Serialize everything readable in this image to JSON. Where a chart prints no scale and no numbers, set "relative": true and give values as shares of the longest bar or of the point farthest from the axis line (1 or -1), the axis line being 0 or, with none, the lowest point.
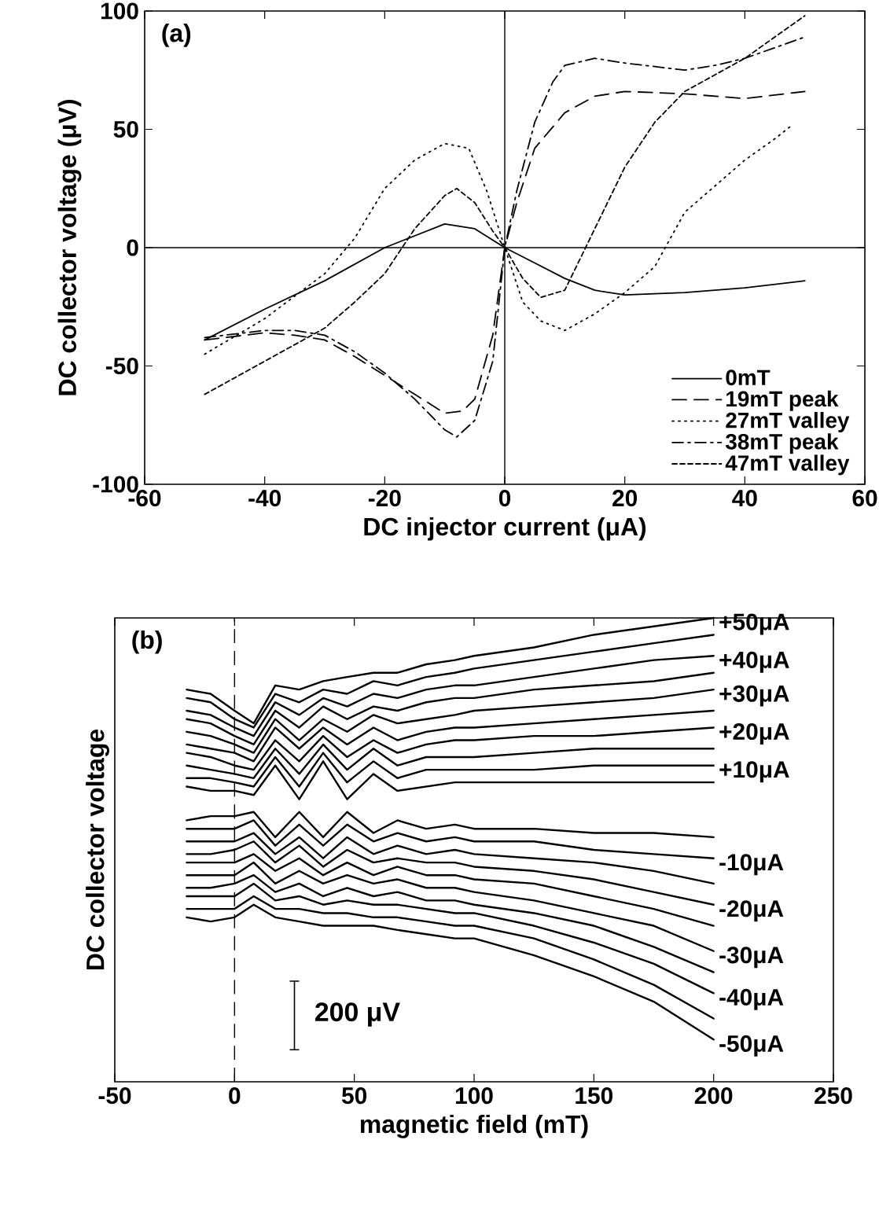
{
  "chart_data": [
    {
      "type": "line",
      "title": "(a)",
      "xlabel": "DC injector current (μA)",
      "ylabel": "DC collector voltage (μV)",
      "xlim": [
        -60,
        60
      ],
      "xticks": [
        -60,
        -40,
        -20,
        0,
        20,
        40,
        60
      ],
      "ylim": [
        -100,
        100
      ],
      "yticks": [
        -100,
        -50,
        0,
        50,
        100
      ],
      "legend": "bottom right",
      "ref_lines": [
        {
          "axis": "x",
          "value": 0,
          "line_style": "solid"
        },
        {
          "axis": "y",
          "value": 0,
          "line_style": "solid"
        }
      ],
      "series": [
        {
          "name": "0mT",
          "color": "#000000",
          "line_style": "solid",
          "x": [
            -50,
            -40,
            -30,
            -20,
            -10,
            -5,
            0,
            5,
            10,
            15,
            20,
            30,
            40,
            50
          ],
          "values": [
            -39,
            -26,
            -14,
            0,
            10,
            8,
            0,
            -6.5,
            -13,
            -18,
            -20,
            -19,
            -17,
            -14
          ]
        },
        {
          "name": "19mT peak",
          "color": "#000000",
          "line_style": "dashed",
          "x": [
            -50,
            -40,
            -35,
            -30,
            -25,
            -20,
            -15,
            -10,
            -7,
            -5,
            -2,
            0,
            2,
            5,
            10,
            15,
            20,
            30,
            40,
            50
          ],
          "values": [
            -39,
            -36,
            -37,
            -39,
            -46,
            -54,
            -62,
            -70,
            -69,
            -64,
            -37,
            0,
            19,
            42,
            57,
            64,
            66,
            65,
            63,
            66
          ]
        },
        {
          "name": "27mT valley",
          "color": "#000000",
          "line_style": "dotted",
          "x": [
            -50,
            -40,
            -30,
            -25,
            -20,
            -15,
            -10,
            -6,
            -3,
            0,
            3,
            6,
            10,
            15,
            20,
            25,
            30,
            35,
            40,
            45,
            48
          ],
          "values": [
            -45,
            -30,
            -11,
            4,
            25,
            37,
            44,
            42,
            24,
            0,
            -23,
            -31,
            -35,
            -28,
            -19,
            -8,
            15,
            26,
            37,
            46,
            52
          ]
        },
        {
          "name": "38mT peak",
          "color": "#000000",
          "line_style": "dashdot",
          "x": [
            -50,
            -40,
            -35,
            -30,
            -25,
            -20,
            -15,
            -10,
            -8,
            -5,
            -2,
            0,
            2,
            5,
            8,
            10,
            15,
            20,
            30,
            35,
            40,
            50
          ],
          "values": [
            -38,
            -35,
            -35,
            -37,
            -44,
            -53,
            -64,
            -77,
            -80,
            -73,
            -48,
            0,
            24,
            53,
            70,
            77,
            80,
            78,
            75,
            77,
            80,
            89
          ]
        },
        {
          "name": "47mT valley",
          "color": "#000000",
          "line_style": "densely dashed",
          "x": [
            -50,
            -40,
            -30,
            -25,
            -20,
            -15,
            -10,
            -8,
            -5,
            -2,
            0,
            3,
            6,
            10,
            15,
            20,
            25,
            30,
            40,
            50
          ],
          "values": [
            -62,
            -48,
            -34,
            -23,
            -11,
            8,
            22,
            25,
            19,
            7,
            0,
            -13,
            -21,
            -18,
            8,
            34,
            53,
            66,
            80,
            98
          ]
        }
      ]
    },
    {
      "type": "line",
      "title": "(b)",
      "xlabel": "magnetic field (mT)",
      "ylabel": "DC collector voltage",
      "relative": true,
      "xlim": [
        -50,
        250
      ],
      "xticks": [
        -50,
        0,
        50,
        100,
        150,
        200,
        250
      ],
      "tick_labels": "x",
      "annotations": [
        "200 μV"
      ],
      "ref_lines": [
        {
          "axis": "x",
          "value": 0,
          "line_style": "dashed"
        }
      ],
      "x": [
        -20,
        -10,
        0,
        8,
        17,
        27,
        37,
        47,
        58,
        68,
        80,
        92,
        100,
        125,
        150,
        175,
        200
      ],
      "series": [
        {
          "name": "+50μA",
          "color": "#000000",
          "values": [
            0.83,
            0.82,
            0.78,
            0.75,
            0.84,
            0.83,
            0.85,
            0.86,
            0.87,
            0.87,
            0.89,
            0.9,
            0.91,
            0.93,
            0.96,
            0.98,
            1.0
          ]
        },
        {
          "color": "#000000",
          "values": [
            0.81,
            0.8,
            0.76,
            0.74,
            0.82,
            0.8,
            0.83,
            0.82,
            0.85,
            0.84,
            0.86,
            0.87,
            0.88,
            0.9,
            0.92,
            0.94,
            0.96
          ]
        },
        {
          "name": "+40μA",
          "color": "#000000",
          "values": [
            0.78,
            0.77,
            0.74,
            0.72,
            0.8,
            0.77,
            0.81,
            0.79,
            0.82,
            0.81,
            0.83,
            0.84,
            0.84,
            0.86,
            0.88,
            0.9,
            0.91
          ]
        },
        {
          "color": "#000000",
          "values": [
            0.76,
            0.75,
            0.72,
            0.7,
            0.78,
            0.74,
            0.79,
            0.76,
            0.79,
            0.78,
            0.8,
            0.81,
            0.81,
            0.83,
            0.84,
            0.85,
            0.87
          ]
        },
        {
          "name": "+30μA",
          "color": "#000000",
          "values": [
            0.73,
            0.72,
            0.7,
            0.68,
            0.76,
            0.71,
            0.76,
            0.73,
            0.77,
            0.75,
            0.76,
            0.77,
            0.78,
            0.79,
            0.8,
            0.81,
            0.83
          ]
        },
        {
          "color": "#000000",
          "values": [
            0.7,
            0.69,
            0.68,
            0.66,
            0.74,
            0.69,
            0.74,
            0.7,
            0.74,
            0.71,
            0.73,
            0.74,
            0.74,
            0.75,
            0.76,
            0.77,
            0.78
          ]
        },
        {
          "name": "+20μA",
          "color": "#000000",
          "values": [
            0.68,
            0.67,
            0.65,
            0.64,
            0.71,
            0.66,
            0.72,
            0.67,
            0.71,
            0.68,
            0.7,
            0.71,
            0.71,
            0.72,
            0.72,
            0.73,
            0.74
          ]
        },
        {
          "color": "#000000",
          "values": [
            0.65,
            0.64,
            0.63,
            0.62,
            0.69,
            0.63,
            0.7,
            0.64,
            0.69,
            0.65,
            0.67,
            0.67,
            0.67,
            0.68,
            0.69,
            0.69,
            0.69
          ]
        },
        {
          "name": "+10μA",
          "color": "#000000",
          "values": [
            0.62,
            0.62,
            0.61,
            0.6,
            0.67,
            0.6,
            0.68,
            0.61,
            0.66,
            0.62,
            0.64,
            0.64,
            0.64,
            0.64,
            0.65,
            0.65,
            0.65
          ]
        },
        {
          "color": "#000000",
          "values": [
            0.6,
            0.59,
            0.59,
            0.58,
            0.65,
            0.57,
            0.66,
            0.57,
            0.63,
            0.59,
            0.6,
            0.61,
            0.61,
            0.61,
            0.61,
            0.61,
            0.61
          ]
        },
        {
          "color": "#000000",
          "values": [
            0.52,
            0.53,
            0.53,
            0.54,
            0.48,
            0.54,
            0.48,
            0.54,
            0.49,
            0.52,
            0.5,
            0.51,
            0.5,
            0.5,
            0.49,
            0.49,
            0.48
          ]
        },
        {
          "name": "-10μA",
          "color": "#000000",
          "values": [
            0.5,
            0.5,
            0.5,
            0.52,
            0.46,
            0.51,
            0.46,
            0.51,
            0.47,
            0.49,
            0.47,
            0.48,
            0.47,
            0.47,
            0.45,
            0.44,
            0.43
          ]
        },
        {
          "color": "#000000",
          "values": [
            0.47,
            0.47,
            0.47,
            0.49,
            0.44,
            0.48,
            0.43,
            0.48,
            0.44,
            0.46,
            0.44,
            0.45,
            0.44,
            0.43,
            0.42,
            0.4,
            0.37
          ]
        },
        {
          "name": "-20μA",
          "color": "#000000",
          "values": [
            0.44,
            0.44,
            0.45,
            0.47,
            0.42,
            0.46,
            0.41,
            0.45,
            0.42,
            0.43,
            0.42,
            0.42,
            0.41,
            0.4,
            0.38,
            0.35,
            0.32
          ]
        },
        {
          "color": "#000000",
          "values": [
            0.42,
            0.42,
            0.42,
            0.44,
            0.4,
            0.43,
            0.39,
            0.42,
            0.39,
            0.41,
            0.39,
            0.39,
            0.38,
            0.37,
            0.34,
            0.31,
            0.27
          ]
        },
        {
          "name": "-30μA",
          "color": "#000000",
          "values": [
            0.39,
            0.39,
            0.39,
            0.42,
            0.37,
            0.4,
            0.37,
            0.39,
            0.37,
            0.38,
            0.36,
            0.36,
            0.35,
            0.33,
            0.3,
            0.27,
            0.21
          ]
        },
        {
          "color": "#000000",
          "values": [
            0.36,
            0.36,
            0.37,
            0.39,
            0.35,
            0.37,
            0.34,
            0.36,
            0.34,
            0.35,
            0.33,
            0.33,
            0.32,
            0.3,
            0.27,
            0.22,
            0.16
          ]
        },
        {
          "name": "-40μA",
          "color": "#000000",
          "values": [
            0.34,
            0.34,
            0.34,
            0.37,
            0.33,
            0.34,
            0.32,
            0.33,
            0.32,
            0.32,
            0.31,
            0.3,
            0.3,
            0.27,
            0.23,
            0.18,
            0.11
          ]
        },
        {
          "color": "#000000",
          "values": [
            0.31,
            0.31,
            0.31,
            0.34,
            0.31,
            0.31,
            0.3,
            0.3,
            0.29,
            0.29,
            0.28,
            0.27,
            0.27,
            0.24,
            0.19,
            0.13,
            0.05
          ]
        },
        {
          "name": "-50μA",
          "color": "#000000",
          "values": [
            0.29,
            0.28,
            0.29,
            0.32,
            0.29,
            0.28,
            0.27,
            0.27,
            0.27,
            0.26,
            0.25,
            0.24,
            0.24,
            0.2,
            0.15,
            0.09,
            0.0
          ]
        }
      ]
    }
  ]
}
